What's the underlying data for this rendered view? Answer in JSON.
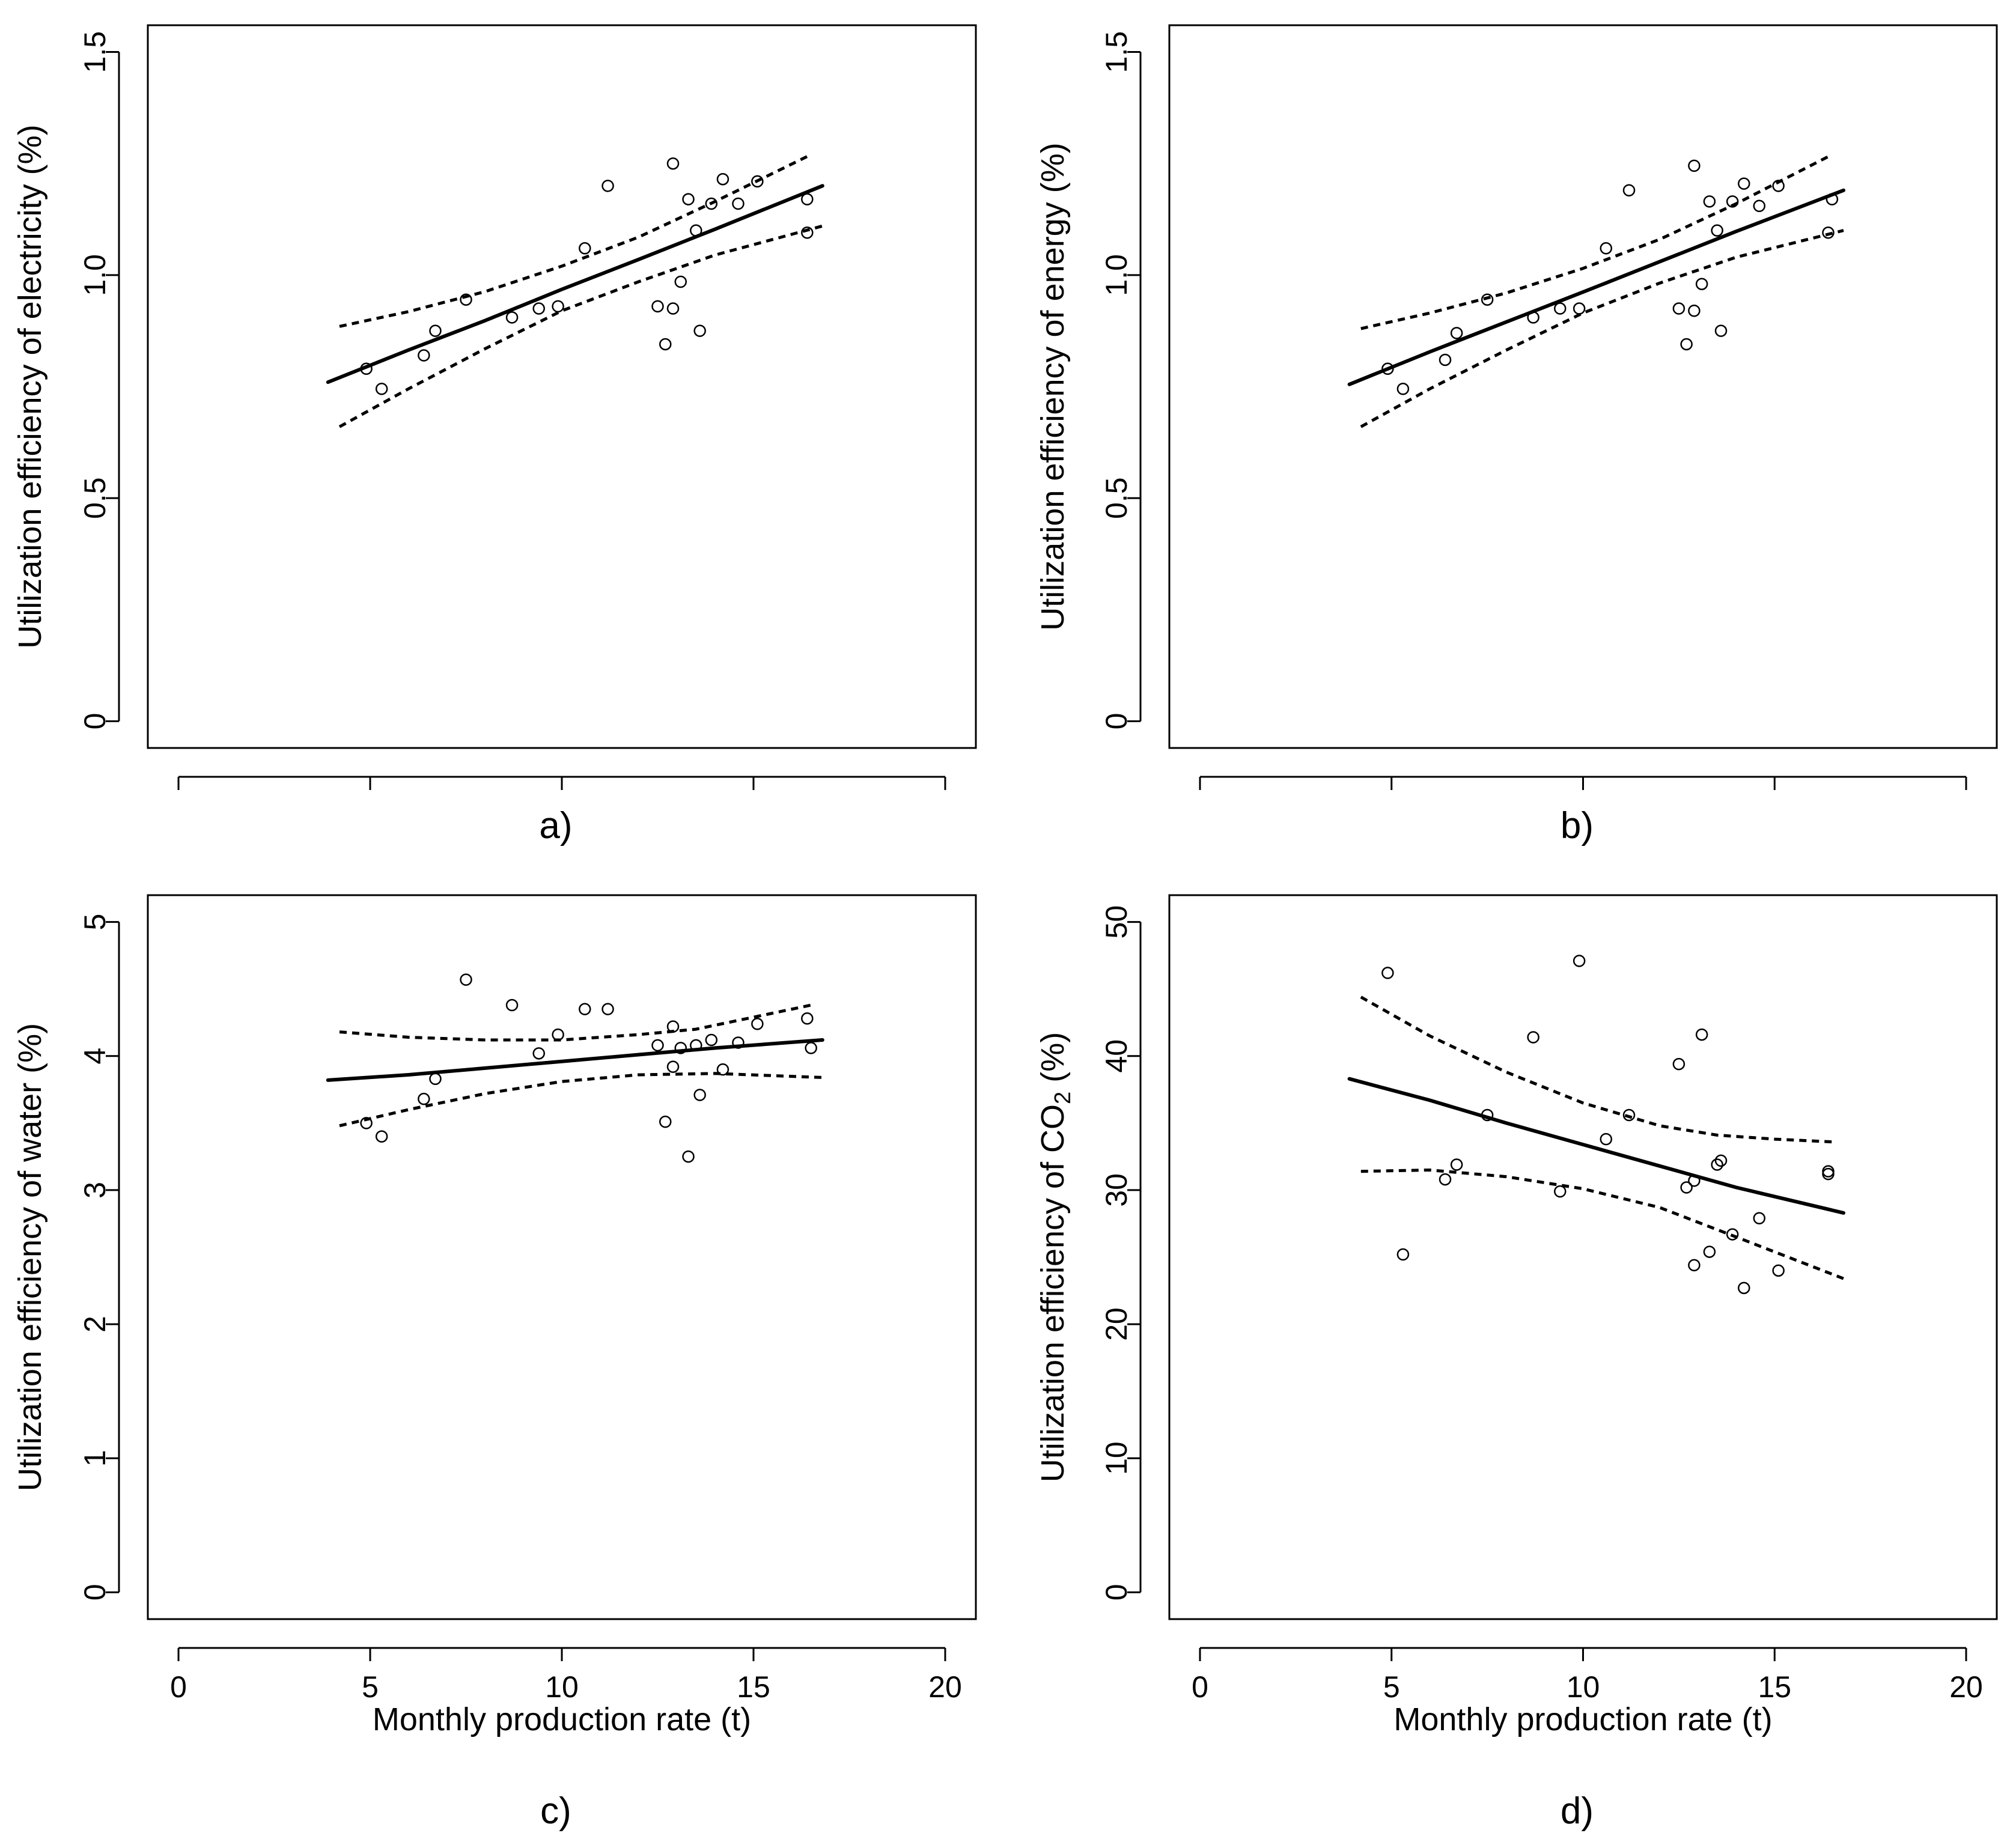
{
  "figure_title": "",
  "chart_data": [
    {
      "type": "scatter",
      "panel_label": "a)",
      "title": "",
      "xlabel": "",
      "ylabel_parts": [
        "Utilization  efficiency of electricity  (%)"
      ],
      "xlim": [
        -0.8,
        20.8
      ],
      "ylim": [
        -0.06,
        1.56
      ],
      "x_ticks": [
        0,
        5,
        10,
        15,
        20
      ],
      "x_tick_labels_shown": false,
      "y_ticks": [
        0,
        0.5,
        1.0,
        1.5
      ],
      "y_tick_labels": [
        "0",
        "0.5",
        "1.0",
        "1.5"
      ],
      "grid": false,
      "points": {
        "x": [
          4.9,
          5.3,
          6.4,
          6.7,
          7.5,
          8.7,
          9.4,
          9.9,
          10.6,
          11.2,
          12.5,
          12.7,
          12.9,
          12.9,
          13.1,
          13.3,
          13.5,
          13.6,
          13.9,
          14.2,
          14.6,
          15.1,
          16.4,
          16.4
        ],
        "y": [
          0.79,
          0.745,
          0.82,
          0.875,
          0.945,
          0.905,
          0.925,
          0.93,
          1.06,
          1.2,
          0.93,
          0.845,
          0.925,
          1.25,
          0.985,
          1.17,
          1.1,
          0.875,
          1.16,
          1.215,
          1.16,
          1.21,
          1.095,
          1.17
        ]
      },
      "series": [
        {
          "name": "fit",
          "style": "solid",
          "x": [
            3.9,
            6.0,
            8.0,
            10.0,
            12.0,
            14.0,
            16.8
          ],
          "y": [
            0.76,
            0.832,
            0.898,
            0.968,
            1.035,
            1.103,
            1.2
          ]
        },
        {
          "name": "upper confidence band",
          "style": "dashed",
          "x": [
            4.2,
            6.0,
            8.0,
            10.0,
            12.0,
            14.0,
            16.5
          ],
          "y": [
            0.885,
            0.918,
            0.963,
            1.02,
            1.085,
            1.165,
            1.27
          ]
        },
        {
          "name": "lower confidence band",
          "style": "dashed",
          "x": [
            4.2,
            6.0,
            8.0,
            10.0,
            12.0,
            14.0,
            16.8
          ],
          "y": [
            0.66,
            0.745,
            0.835,
            0.92,
            0.985,
            1.045,
            1.11
          ]
        }
      ]
    },
    {
      "type": "scatter",
      "panel_label": "b)",
      "title": "",
      "xlabel": "",
      "ylabel_parts": [
        "Utilization  efficiency of energy  (%)"
      ],
      "xlim": [
        -0.8,
        20.8
      ],
      "ylim": [
        -0.06,
        1.56
      ],
      "x_ticks": [
        0,
        5,
        10,
        15,
        20
      ],
      "x_tick_labels_shown": false,
      "y_ticks": [
        0,
        0.5,
        1.0,
        1.5
      ],
      "y_tick_labels": [
        "0",
        "0.5",
        "1.0",
        "1.5"
      ],
      "grid": false,
      "points": {
        "x": [
          4.9,
          5.3,
          6.4,
          6.7,
          7.5,
          8.7,
          9.4,
          9.9,
          10.6,
          11.2,
          12.5,
          12.7,
          12.9,
          12.9,
          13.1,
          13.3,
          13.5,
          13.6,
          13.9,
          14.2,
          14.6,
          15.1,
          16.4,
          16.5
        ],
        "y": [
          0.79,
          0.745,
          0.81,
          0.87,
          0.945,
          0.905,
          0.925,
          0.925,
          1.06,
          1.19,
          0.925,
          0.845,
          0.92,
          1.245,
          0.98,
          1.165,
          1.1,
          0.875,
          1.165,
          1.205,
          1.155,
          1.2,
          1.095,
          1.17
        ]
      },
      "series": [
        {
          "name": "fit",
          "style": "solid",
          "x": [
            3.9,
            6.0,
            8.0,
            10.0,
            12.0,
            14.0,
            16.8
          ],
          "y": [
            0.755,
            0.828,
            0.895,
            0.962,
            1.03,
            1.098,
            1.19
          ]
        },
        {
          "name": "upper confidence band",
          "style": "dashed",
          "x": [
            4.2,
            6.0,
            8.0,
            10.0,
            12.0,
            14.0,
            16.5
          ],
          "y": [
            0.88,
            0.915,
            0.96,
            1.015,
            1.08,
            1.16,
            1.27
          ]
        },
        {
          "name": "lower confidence band",
          "style": "dashed",
          "x": [
            4.2,
            6.0,
            8.0,
            10.0,
            12.0,
            14.0,
            16.8
          ],
          "y": [
            0.66,
            0.745,
            0.832,
            0.915,
            0.982,
            1.04,
            1.1
          ]
        }
      ]
    },
    {
      "type": "scatter",
      "panel_label": "c)",
      "title": "",
      "xlabel": "Monthly  production rate  (t)",
      "ylabel_parts": [
        "Utilization  efficiency of water  (%)"
      ],
      "xlim": [
        -0.8,
        20.8
      ],
      "ylim": [
        -0.2,
        5.2
      ],
      "x_ticks": [
        0,
        5,
        10,
        15,
        20
      ],
      "x_tick_labels_shown": true,
      "x_tick_labels": [
        "0",
        "5",
        "10",
        "15",
        "20"
      ],
      "y_ticks": [
        0,
        1,
        2,
        3,
        4,
        5
      ],
      "y_tick_labels": [
        "0",
        "1",
        "2",
        "3",
        "4",
        "5"
      ],
      "grid": false,
      "points": {
        "x": [
          4.9,
          5.3,
          6.4,
          6.7,
          7.5,
          8.7,
          9.4,
          9.9,
          10.6,
          11.2,
          12.5,
          12.7,
          12.9,
          12.9,
          13.1,
          13.3,
          13.5,
          13.6,
          13.9,
          14.2,
          14.6,
          15.1,
          16.4,
          16.5
        ],
        "y": [
          3.5,
          3.4,
          3.68,
          3.83,
          4.57,
          4.38,
          4.02,
          4.16,
          4.35,
          4.35,
          4.08,
          3.51,
          3.92,
          4.22,
          4.06,
          3.25,
          4.08,
          3.71,
          4.12,
          3.9,
          4.1,
          4.24,
          4.28,
          4.06
        ]
      },
      "series": [
        {
          "name": "fit",
          "style": "solid",
          "x": [
            3.9,
            6.0,
            8.0,
            10.0,
            12.0,
            14.0,
            16.8
          ],
          "y": [
            3.82,
            3.86,
            3.91,
            3.96,
            4.01,
            4.06,
            4.12
          ]
        },
        {
          "name": "upper confidence band",
          "style": "dashed",
          "x": [
            4.2,
            6.0,
            8.0,
            10.0,
            12.0,
            13.5,
            15.0,
            16.5
          ],
          "y": [
            4.18,
            4.14,
            4.12,
            4.12,
            4.16,
            4.2,
            4.29,
            4.38
          ]
        },
        {
          "name": "lower confidence band",
          "style": "dashed",
          "x": [
            4.2,
            6.0,
            8.0,
            10.0,
            12.0,
            14.0,
            16.8
          ],
          "y": [
            3.48,
            3.6,
            3.72,
            3.81,
            3.86,
            3.87,
            3.84
          ]
        }
      ]
    },
    {
      "type": "scatter",
      "panel_label": "d)",
      "title": "",
      "xlabel": "Monthly  production rate  (t)",
      "ylabel_parts": [
        "Utilization  efficiency of CO",
        "2",
        "  (%)"
      ],
      "xlim": [
        -0.8,
        20.8
      ],
      "ylim": [
        -2,
        52
      ],
      "x_ticks": [
        0,
        5,
        10,
        15,
        20
      ],
      "x_tick_labels_shown": true,
      "x_tick_labels": [
        "0",
        "5",
        "10",
        "15",
        "20"
      ],
      "y_ticks": [
        0,
        10,
        20,
        30,
        40,
        50
      ],
      "y_tick_labels": [
        "0",
        "10",
        "20",
        "30",
        "40",
        "50"
      ],
      "grid": false,
      "points": {
        "x": [
          4.9,
          5.3,
          6.4,
          6.7,
          7.5,
          8.7,
          9.4,
          9.9,
          10.6,
          11.2,
          12.5,
          12.7,
          12.9,
          12.9,
          13.1,
          13.3,
          13.5,
          13.6,
          13.9,
          14.2,
          14.6,
          15.1,
          16.4,
          16.4
        ],
        "y": [
          46.2,
          25.2,
          30.8,
          31.9,
          35.6,
          41.4,
          29.9,
          47.1,
          33.8,
          35.6,
          39.4,
          30.2,
          24.4,
          30.7,
          41.6,
          25.4,
          31.9,
          32.2,
          26.7,
          22.7,
          27.9,
          24.0,
          31.2,
          31.4
        ]
      },
      "series": [
        {
          "name": "fit",
          "style": "solid",
          "x": [
            3.9,
            6.0,
            8.0,
            10.0,
            12.0,
            14.0,
            16.8
          ],
          "y": [
            38.3,
            36.7,
            35.0,
            33.4,
            31.8,
            30.2,
            28.3
          ]
        },
        {
          "name": "upper confidence band",
          "style": "dashed",
          "x": [
            4.2,
            6.0,
            8.0,
            10.0,
            12.0,
            13.5,
            15.0,
            16.5
          ],
          "y": [
            44.4,
            41.5,
            38.8,
            36.5,
            34.8,
            34.1,
            33.8,
            33.6
          ]
        },
        {
          "name": "lower confidence band",
          "style": "dashed",
          "x": [
            4.2,
            6.0,
            8.0,
            10.0,
            12.0,
            14.0,
            16.8
          ],
          "y": [
            31.4,
            31.5,
            31.0,
            30.1,
            28.7,
            26.5,
            23.4
          ]
        }
      ]
    }
  ]
}
